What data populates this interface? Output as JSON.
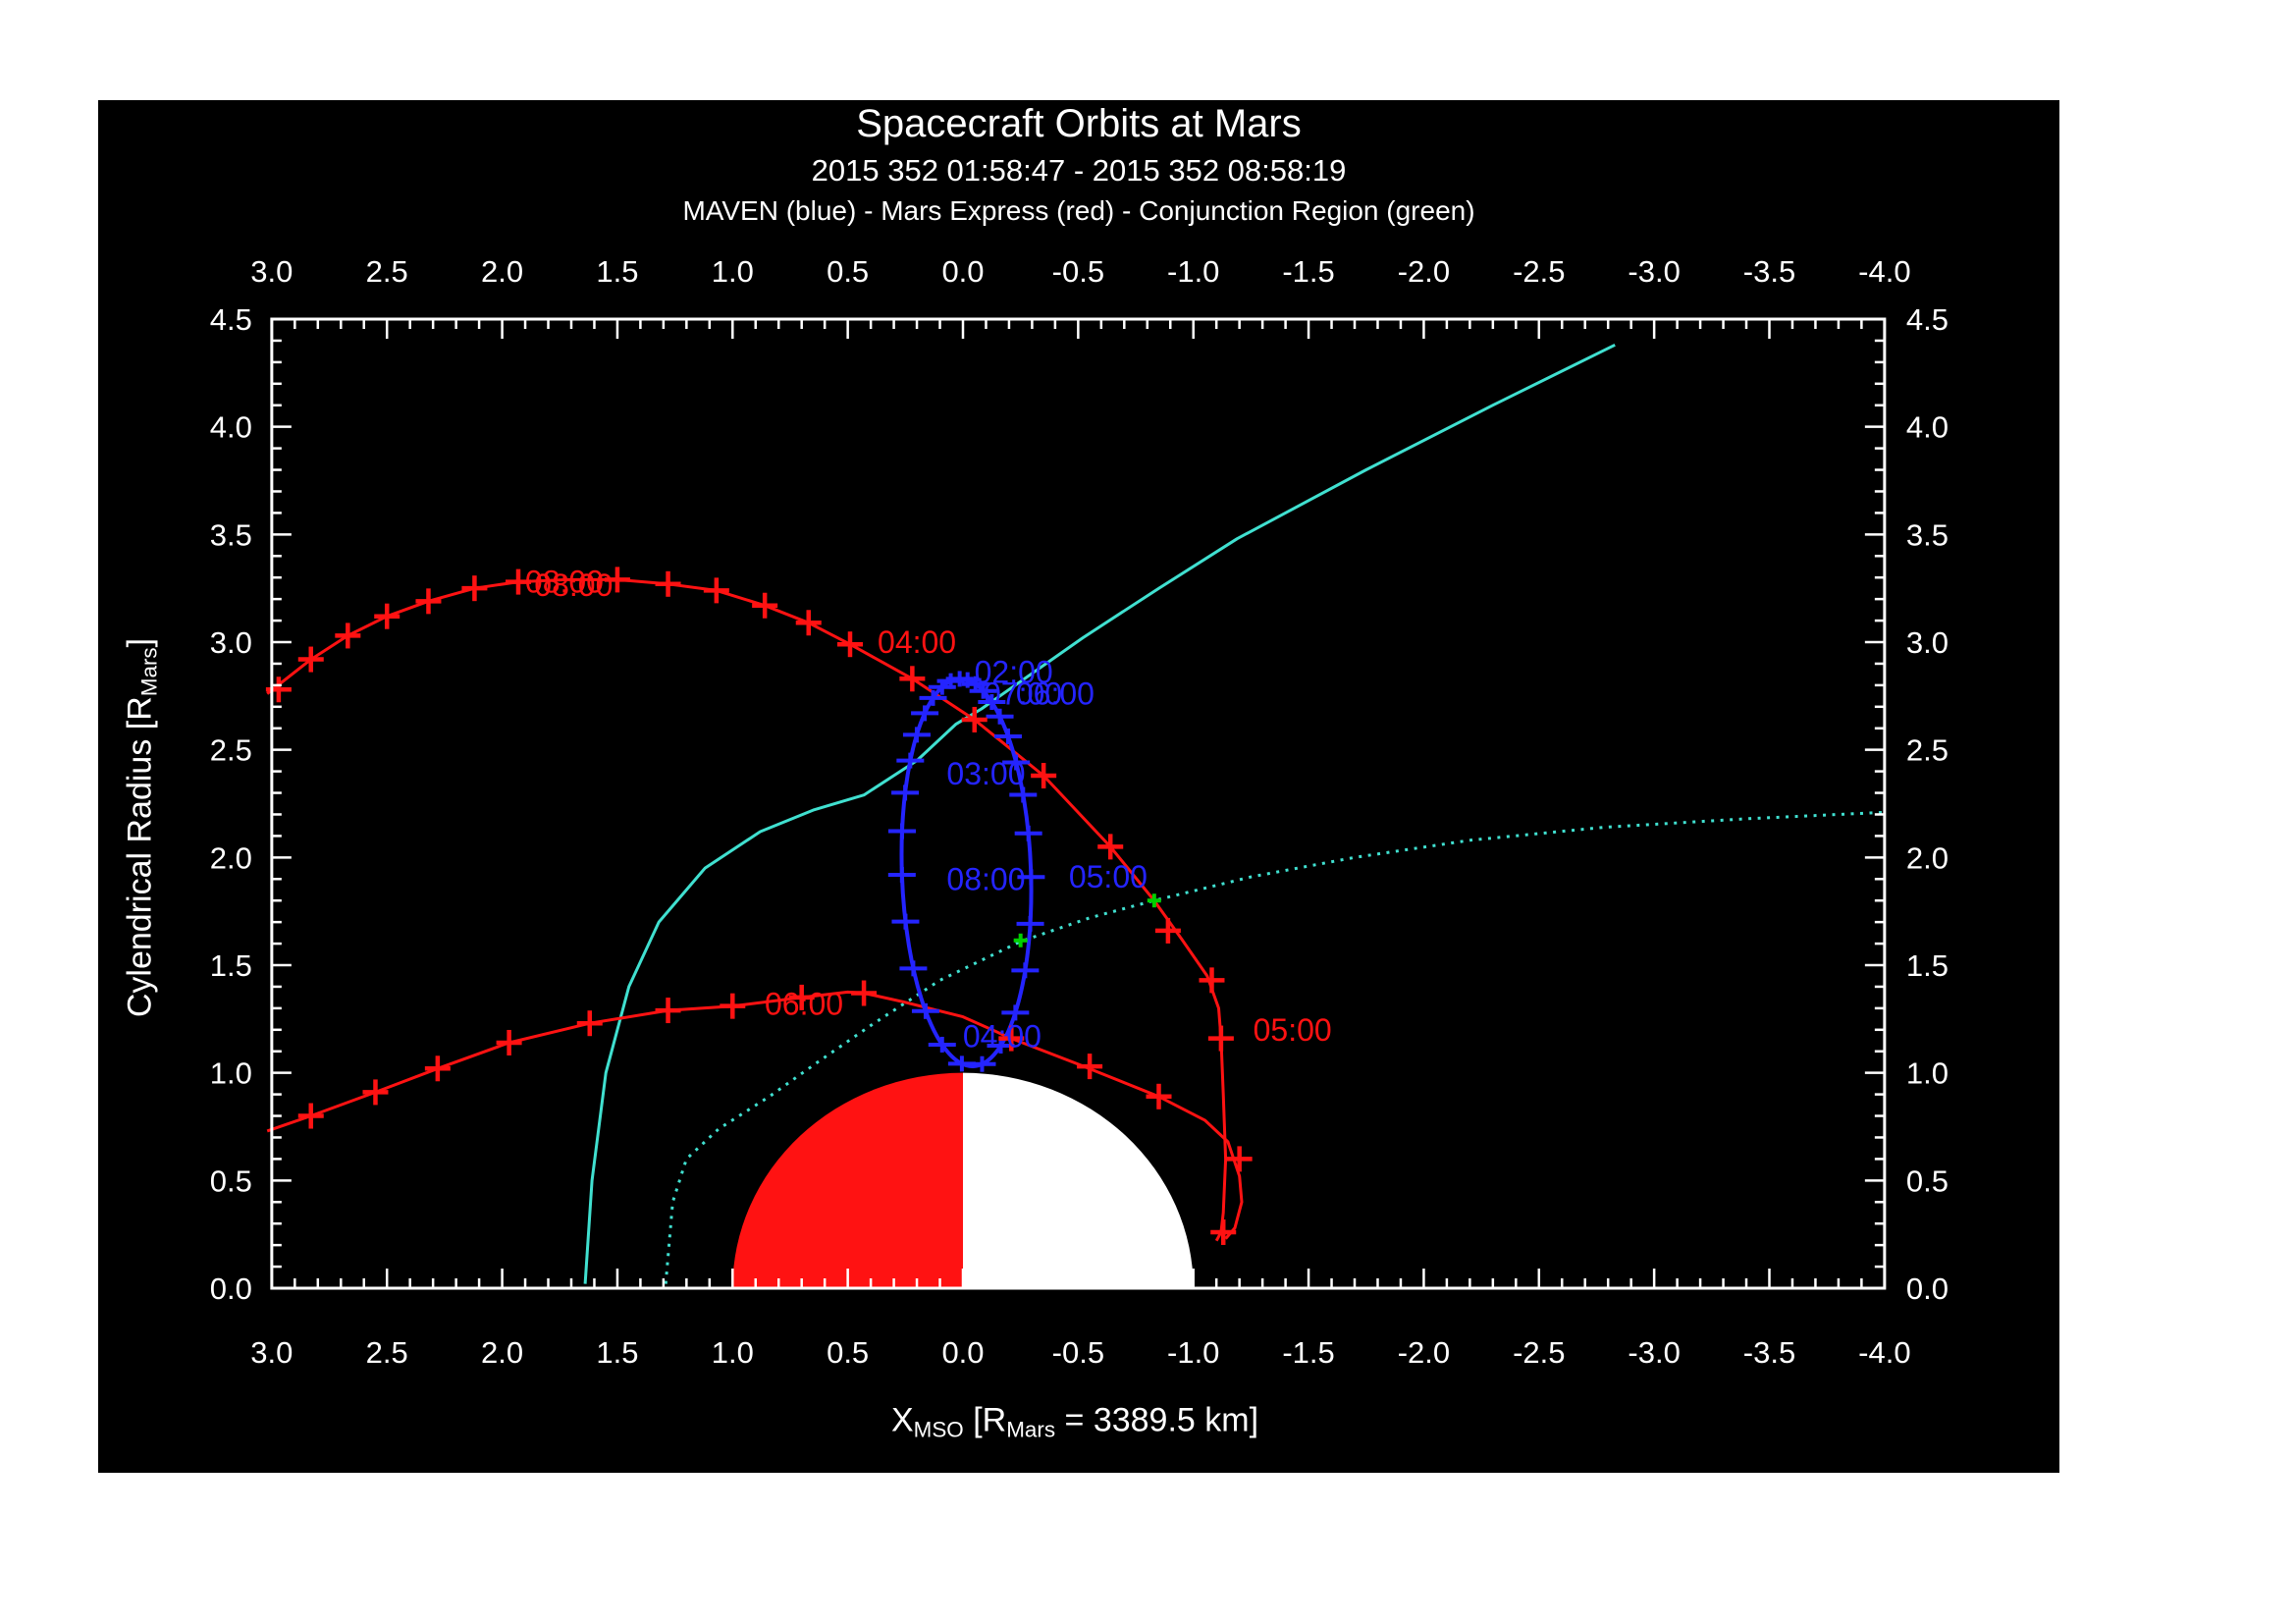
{
  "header": {
    "title": "Spacecraft Orbits at Mars",
    "subtitle": "2015 352 01:58:47 - 2015 352 08:58:19",
    "legend": "MAVEN (blue) - Mars Express (red) - Conjunction Region (green)"
  },
  "axes": {
    "x_title": {
      "p1": "X",
      "sub1": "MSO",
      "p2": " [R",
      "sub2": "Mars",
      "p3": " = 3389.5 km]"
    },
    "y_title": {
      "p1": "Cylendrical Radius [R",
      "sub1": "Mars",
      "p2": "]"
    },
    "x_ticks": [
      "3.0",
      "2.5",
      "2.0",
      "1.5",
      "1.0",
      "0.5",
      "0.0",
      "-0.5",
      "-1.0",
      "-1.5",
      "-2.0",
      "-2.5",
      "-3.0",
      "-3.5",
      "-4.0"
    ],
    "x_tick_values": [
      3.0,
      2.5,
      2.0,
      1.5,
      1.0,
      0.5,
      0.0,
      -0.5,
      -1.0,
      -1.5,
      -2.0,
      -2.5,
      -3.0,
      -3.5,
      -4.0
    ],
    "y_ticks": [
      "4.5",
      "4.0",
      "3.5",
      "3.0",
      "2.5",
      "2.0",
      "1.5",
      "1.0",
      "0.5",
      "0.0"
    ],
    "y_tick_values": [
      4.5,
      4.0,
      3.5,
      3.0,
      2.5,
      2.0,
      1.5,
      1.0,
      0.5,
      0.0
    ],
    "x_range": [
      3.0,
      -4.0
    ],
    "y_range": [
      0.0,
      4.5
    ],
    "minor_step": 0.1
  },
  "colors": {
    "background": "#000000",
    "page": "#ffffff",
    "axis": "#ffffff",
    "red": "#ff1212",
    "blue": "#2424ff",
    "cyan": "#40e0d0",
    "green": "#00cf00",
    "mars_day": "#ff1212",
    "mars_night": "#ffffff"
  },
  "chart_data": {
    "type": "line",
    "title": "Spacecraft Orbits at Mars",
    "xlabel": "X_MSO [R_Mars = 3389.5 km]",
    "ylabel": "Cylendrical Radius [R_Mars]",
    "xlim": [
      3.0,
      -4.0
    ],
    "ylim": [
      0.0,
      4.5
    ],
    "grid": false,
    "mars": {
      "radius": 1.0,
      "center_x": 0.0,
      "center_r": 0.0,
      "dayside": "left-red",
      "nightside": "right-white"
    },
    "series": [
      {
        "name": "bow-shock",
        "color": "cyan",
        "style": "solid",
        "points": [
          [
            1.64,
            0.02
          ],
          [
            1.61,
            0.5
          ],
          [
            1.55,
            1.0
          ],
          [
            1.45,
            1.4
          ],
          [
            1.32,
            1.7
          ],
          [
            1.12,
            1.95
          ],
          [
            0.88,
            2.12
          ],
          [
            0.65,
            2.22
          ],
          [
            0.43,
            2.29
          ],
          [
            0.2,
            2.45
          ],
          [
            0.03,
            2.62
          ],
          [
            -0.08,
            2.69
          ],
          [
            -0.52,
            3.02
          ],
          [
            -0.85,
            3.25
          ],
          [
            -1.19,
            3.48
          ],
          [
            -1.75,
            3.8
          ],
          [
            -2.3,
            4.1
          ],
          [
            -2.83,
            4.38
          ]
        ]
      },
      {
        "name": "conjunction-region-boundary",
        "color": "cyan",
        "style": "dotted",
        "points": [
          [
            1.29,
            0.02
          ],
          [
            1.26,
            0.4
          ],
          [
            1.2,
            0.6
          ],
          [
            1.06,
            0.74
          ],
          [
            0.84,
            0.89
          ],
          [
            0.63,
            1.05
          ],
          [
            0.4,
            1.22
          ],
          [
            0.1,
            1.43
          ],
          [
            -0.25,
            1.61
          ],
          [
            -0.55,
            1.72
          ],
          [
            -0.83,
            1.8
          ],
          [
            -1.25,
            1.91
          ],
          [
            -1.7,
            2.0
          ],
          [
            -2.2,
            2.08
          ],
          [
            -2.78,
            2.14
          ],
          [
            -3.4,
            2.18
          ],
          [
            -4.0,
            2.21
          ]
        ]
      },
      {
        "name": "mars-express-upper",
        "color": "red",
        "style": "solid",
        "points": [
          [
            3.02,
            2.76
          ],
          [
            2.83,
            2.92
          ],
          [
            2.67,
            3.03
          ],
          [
            2.5,
            3.12
          ],
          [
            2.32,
            3.19
          ],
          [
            2.12,
            3.25
          ],
          [
            1.93,
            3.28
          ],
          [
            1.72,
            3.29
          ],
          [
            1.5,
            3.29
          ],
          [
            1.28,
            3.27
          ],
          [
            1.07,
            3.24
          ],
          [
            0.86,
            3.17
          ],
          [
            0.67,
            3.09
          ],
          [
            0.49,
            2.99
          ],
          [
            0.22,
            2.83
          ],
          [
            -0.05,
            2.64
          ],
          [
            -0.35,
            2.38
          ],
          [
            -0.64,
            2.05
          ],
          [
            -0.83,
            1.8
          ],
          [
            -0.95,
            1.62
          ],
          [
            -1.06,
            1.45
          ],
          [
            -1.11,
            1.3
          ],
          [
            -1.12,
            1.16
          ],
          [
            -1.13,
            0.9
          ],
          [
            -1.14,
            0.6
          ],
          [
            -1.13,
            0.35
          ],
          [
            -1.12,
            0.26
          ],
          [
            -1.1,
            0.22
          ]
        ]
      },
      {
        "name": "mars-express-lower",
        "color": "red",
        "style": "solid",
        "points": [
          [
            3.02,
            0.73
          ],
          [
            2.83,
            0.8
          ],
          [
            2.55,
            0.91
          ],
          [
            2.28,
            1.02
          ],
          [
            1.97,
            1.14
          ],
          [
            1.62,
            1.23
          ],
          [
            1.28,
            1.29
          ],
          [
            1.0,
            1.31
          ],
          [
            0.7,
            1.35
          ],
          [
            0.5,
            1.375
          ],
          [
            0.43,
            1.37
          ],
          [
            0.26,
            1.33
          ],
          [
            0.0,
            1.26
          ],
          [
            -0.21,
            1.16
          ],
          [
            -0.5,
            1.04
          ],
          [
            -0.85,
            0.89
          ],
          [
            -1.05,
            0.78
          ],
          [
            -1.15,
            0.68
          ],
          [
            -1.2,
            0.52
          ],
          [
            -1.21,
            0.4
          ],
          [
            -1.18,
            0.28
          ],
          [
            -1.14,
            0.23
          ]
        ]
      },
      {
        "name": "maven-orbit",
        "color": "blue",
        "style": "ellipse",
        "center": [
          -0.015,
          1.93
        ],
        "semi_x": 0.28,
        "semi_r": 0.9,
        "rotation_deg": -2,
        "tick_angles_deg": [
          0,
          7,
          14,
          21,
          29,
          37,
          46,
          56,
          67,
          79,
          92,
          106,
          121,
          137,
          154,
          172,
          190,
          208,
          225,
          241,
          256,
          270,
          283,
          295,
          306,
          316,
          326,
          335,
          344,
          352
        ]
      }
    ],
    "red_plus_markers": [
      [
        2.97,
        2.78
      ],
      [
        2.83,
        2.92
      ],
      [
        2.67,
        3.03
      ],
      [
        2.5,
        3.12
      ],
      [
        2.32,
        3.19
      ],
      [
        2.12,
        3.25
      ],
      [
        1.93,
        3.28
      ],
      [
        1.5,
        3.29
      ],
      [
        1.28,
        3.27
      ],
      [
        1.07,
        3.24
      ],
      [
        0.86,
        3.17
      ],
      [
        0.67,
        3.09
      ],
      [
        0.49,
        2.99
      ],
      [
        0.22,
        2.83
      ],
      [
        -0.05,
        2.64
      ],
      [
        -0.35,
        2.38
      ],
      [
        -0.64,
        2.05
      ],
      [
        -0.89,
        1.66
      ],
      [
        -1.08,
        1.43
      ],
      [
        -1.12,
        1.16
      ],
      [
        -1.13,
        0.26
      ],
      [
        -1.2,
        0.6
      ],
      [
        2.83,
        0.8
      ],
      [
        2.55,
        0.91
      ],
      [
        2.28,
        1.02
      ],
      [
        1.97,
        1.14
      ],
      [
        1.62,
        1.23
      ],
      [
        1.28,
        1.29
      ],
      [
        1.0,
        1.31
      ],
      [
        0.7,
        1.35
      ],
      [
        0.43,
        1.37
      ],
      [
        -0.21,
        1.16
      ],
      [
        -0.55,
        1.03
      ],
      [
        -0.85,
        0.89
      ]
    ],
    "conjunction_markers": [
      [
        -0.25,
        1.615
      ],
      [
        -0.83,
        1.8
      ]
    ],
    "orbit_time_labels": [
      {
        "text": "08:00",
        "x": 1.73,
        "r": 3.28,
        "series": "mars-express"
      },
      {
        "text": "08:00",
        "x": 1.69,
        "r": 3.265,
        "series": "mars-express"
      },
      {
        "text": "04:00",
        "x": 0.2,
        "r": 3.0,
        "series": "mars-express"
      },
      {
        "text": "05:00",
        "x": -1.43,
        "r": 1.2,
        "series": "mars-express"
      },
      {
        "text": "06:00",
        "x": 0.69,
        "r": 1.32,
        "series": "mars-express"
      },
      {
        "text": "02:00",
        "x": -0.22,
        "r": 2.86,
        "series": "maven"
      },
      {
        "text": "07:00",
        "x": -0.26,
        "r": 2.76,
        "series": "maven"
      },
      {
        "text": "06:00",
        "x": -0.4,
        "r": 2.76,
        "series": "maven"
      },
      {
        "text": "03:00",
        "x": -0.1,
        "r": 2.39,
        "series": "maven"
      },
      {
        "text": "08:00",
        "x": -0.1,
        "r": 1.9,
        "series": "maven"
      },
      {
        "text": "05:00",
        "x": -0.63,
        "r": 1.91,
        "series": "maven"
      },
      {
        "text": "04:00",
        "x": -0.17,
        "r": 1.17,
        "series": "maven"
      }
    ]
  }
}
